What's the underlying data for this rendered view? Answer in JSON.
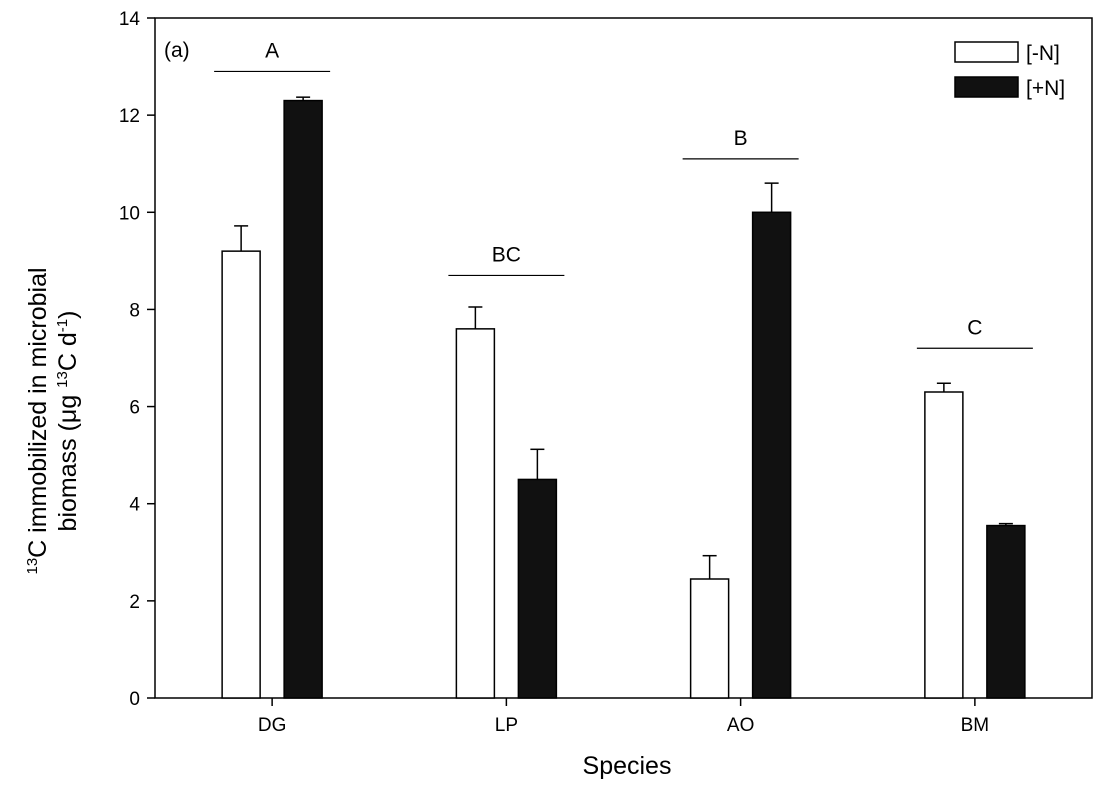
{
  "chart_data": {
    "type": "bar",
    "panel_label": "(a)",
    "categories": [
      "DG",
      "LP",
      "AO",
      "BM"
    ],
    "series": [
      {
        "name": "[-N]",
        "values": [
          9.2,
          7.6,
          2.45,
          6.3
        ],
        "errors": [
          0.52,
          0.45,
          0.48,
          0.18
        ],
        "fill": "#ffffff",
        "stroke": "#000000"
      },
      {
        "name": "[+N]",
        "values": [
          12.3,
          4.5,
          10.0,
          3.55
        ],
        "errors": [
          0.07,
          0.62,
          0.6,
          0.04
        ],
        "fill": "#111111",
        "stroke": "#000000"
      }
    ],
    "group_labels": [
      "A",
      "BC",
      "B",
      "C"
    ],
    "group_label_levels": [
      12.9,
      8.7,
      11.1,
      7.2
    ],
    "xlabel": "Species",
    "ylabel": {
      "line1_sup": "13",
      "line1_text": "C immobilized in microbial",
      "line2_text_a": "biomass (μg ",
      "line2_sup_a": "13",
      "line2_text_b": "C d",
      "line2_sup_b": "-1",
      "line2_text_c": ")"
    },
    "ylim": [
      0,
      14
    ],
    "yticks": [
      "0",
      "2",
      "4",
      "6",
      "8",
      "10",
      "12",
      "14"
    ],
    "legend_position": "top-right",
    "grid": false
  }
}
